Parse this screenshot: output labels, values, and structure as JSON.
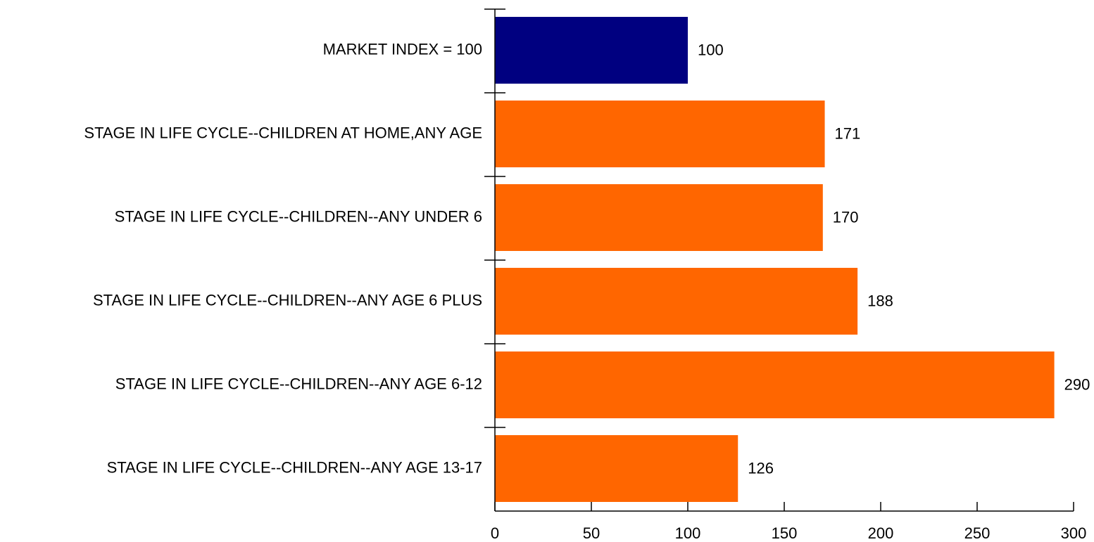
{
  "chart_data": {
    "type": "bar",
    "orientation": "horizontal",
    "categories": [
      "MARKET INDEX = 100",
      "STAGE IN LIFE CYCLE--CHILDREN AT HOME,ANY AGE",
      "STAGE IN LIFE CYCLE--CHILDREN--ANY UNDER 6",
      "STAGE IN LIFE CYCLE--CHILDREN--ANY AGE 6 PLUS",
      "STAGE IN LIFE CYCLE--CHILDREN--ANY AGE 6-12",
      "STAGE IN LIFE CYCLE--CHILDREN--ANY AGE 13-17"
    ],
    "values": [
      100,
      171,
      170,
      188,
      290,
      126
    ],
    "value_labels": [
      "100",
      "171",
      "170",
      "188",
      "290",
      "126"
    ],
    "bar_colors": [
      "#000080",
      "#FF6600",
      "#FF6600",
      "#FF6600",
      "#FF6600",
      "#FF6600"
    ],
    "xlim": [
      0,
      300
    ],
    "xticks": [
      0,
      50,
      100,
      150,
      200,
      250,
      300
    ],
    "xtick_labels": [
      "0",
      "50",
      "100",
      "150",
      "200",
      "250",
      "300"
    ],
    "title": "",
    "xlabel": "",
    "ylabel": "",
    "grid": false,
    "legend": "none"
  }
}
